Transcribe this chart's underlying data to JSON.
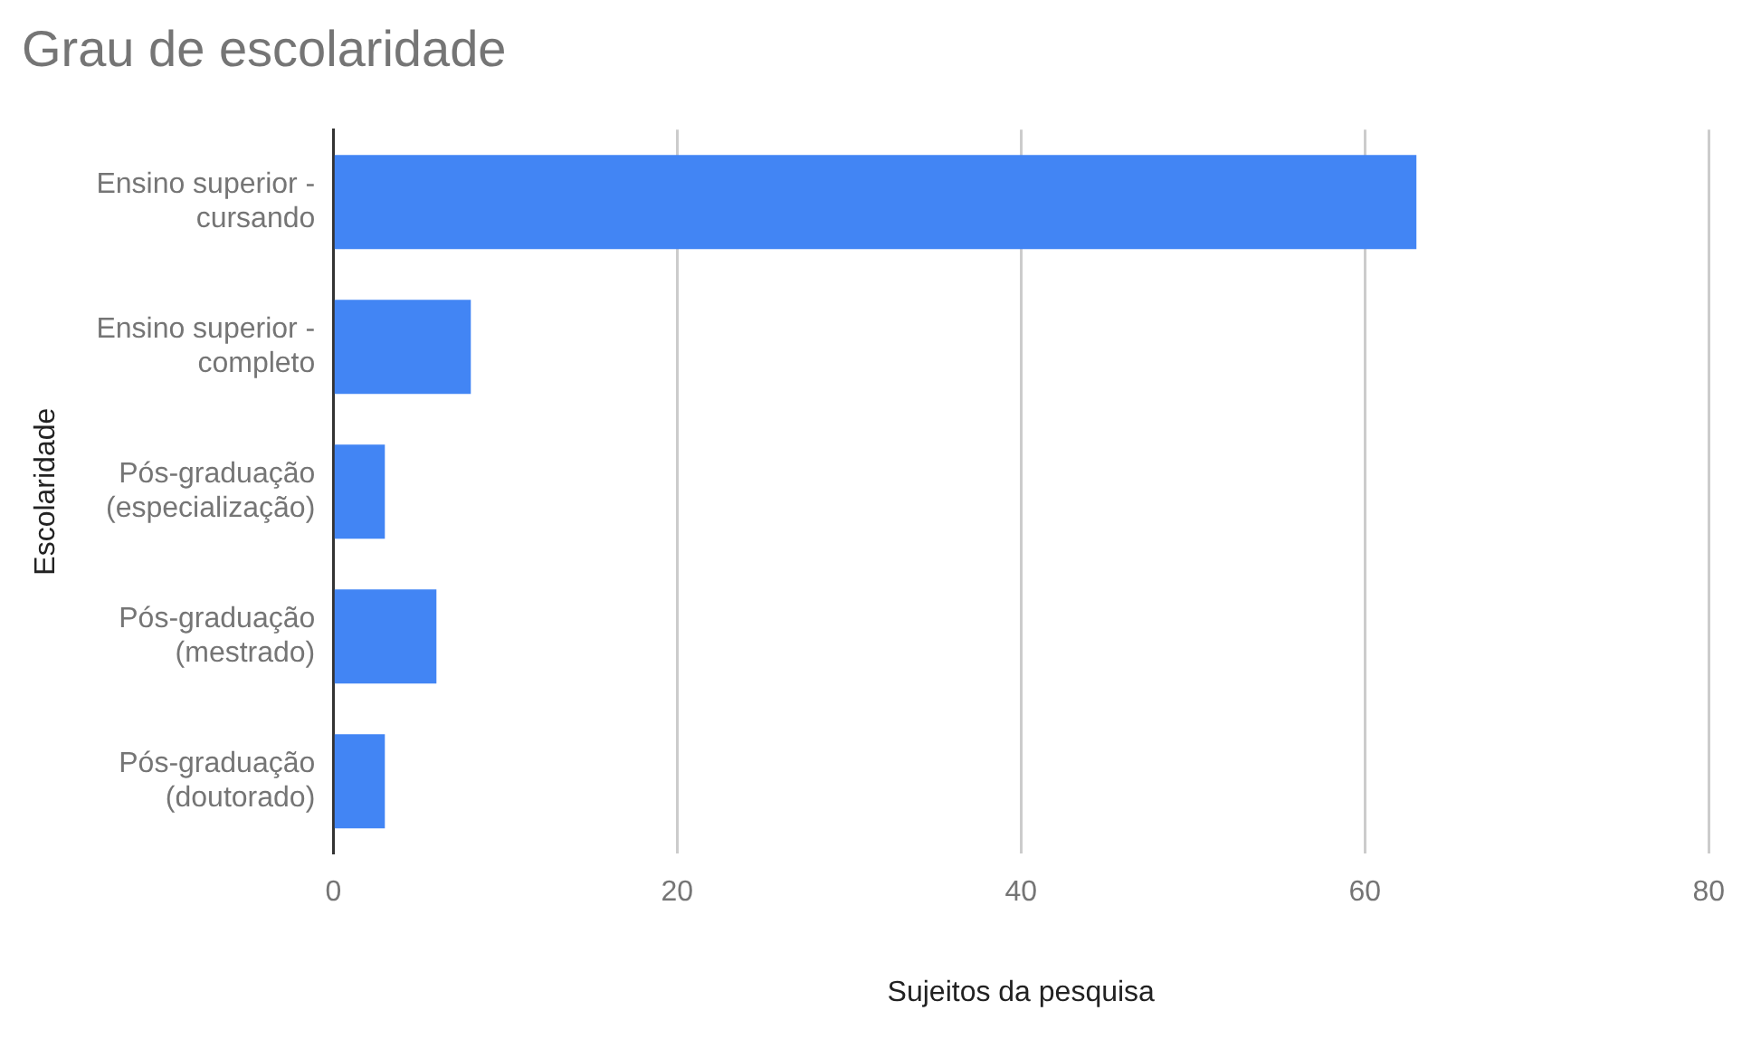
{
  "chart_data": {
    "type": "bar",
    "orientation": "horizontal",
    "title": "Grau de escolaridade",
    "xlabel": "Sujeitos da pesquisa",
    "ylabel": "Escolaridade",
    "categories": [
      "Ensino superior - cursando",
      "Ensino superior - completo",
      "Pós-graduação (especialização)",
      "Pós-graduação (mestrado)",
      "Pós-graduação (doutorado)"
    ],
    "values": [
      63,
      8,
      3,
      6,
      3
    ],
    "color": "#4285f4",
    "xlim": [
      0,
      80
    ],
    "xticks": [
      0,
      20,
      40,
      60,
      80
    ],
    "grid": "x",
    "legend": false
  }
}
